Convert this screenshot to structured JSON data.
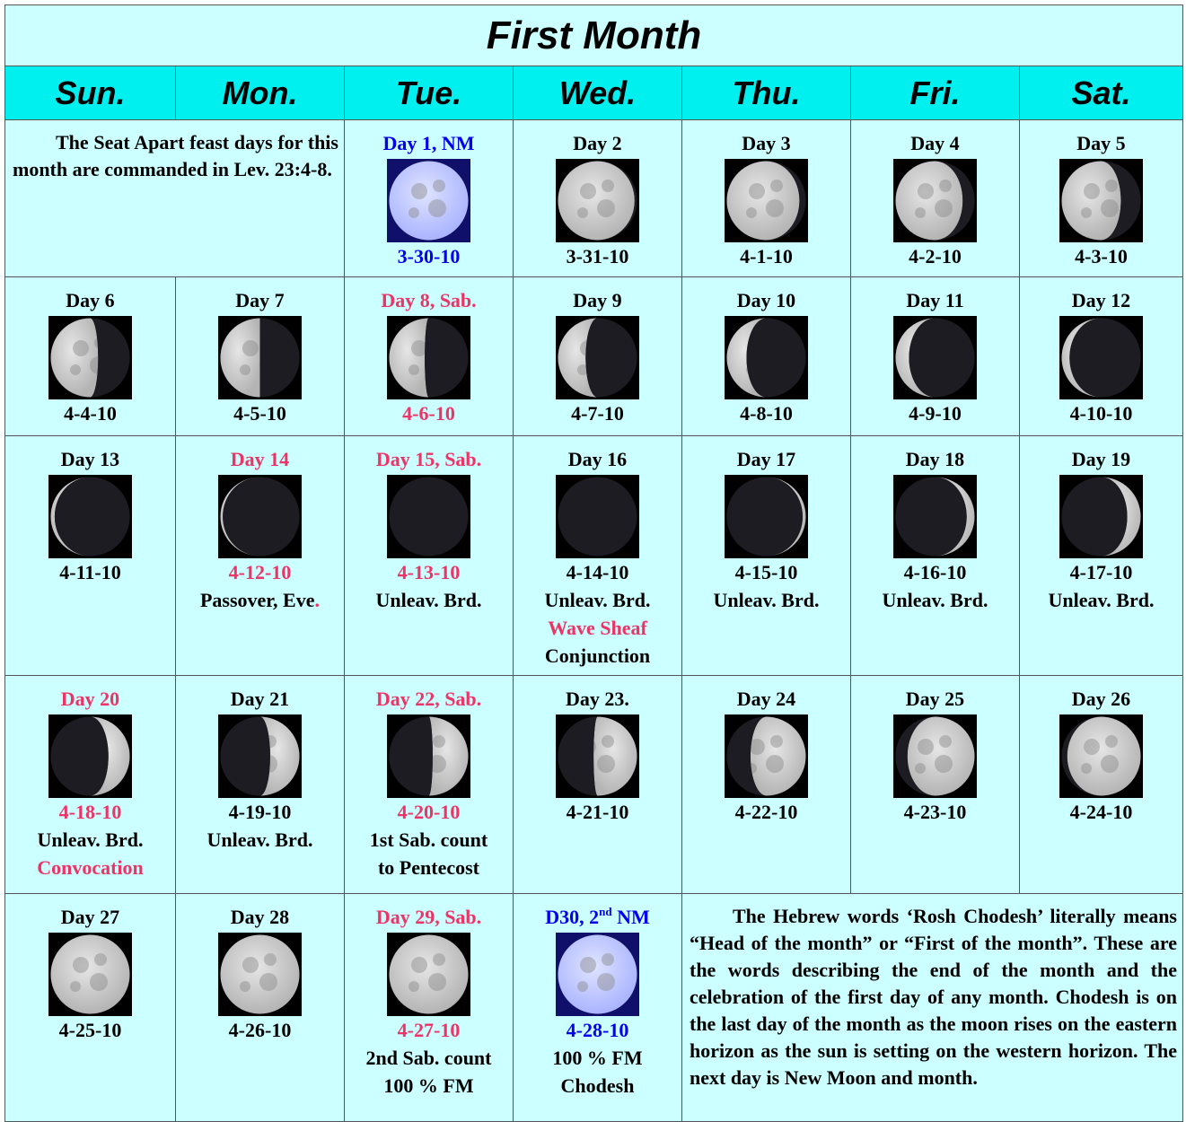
{
  "title": "First Month",
  "weekdays": [
    "Sun.",
    "Mon.",
    "Tue.",
    "Wed.",
    "Thu.",
    "Fri.",
    "Sat."
  ],
  "rows": [
    [
      {
        "text": "The Seat Apart feast days for this month are commanded in Lev. 23:4-8."
      },
      {
        "day": [
          {
            "text": "Day 1, NM",
            "color": "#0000ee"
          }
        ],
        "date": [
          {
            "text": "3-30-10",
            "color": "#0000ee"
          }
        ],
        "notes": []
      },
      {
        "day": [
          {
            "text": "Day 2"
          }
        ],
        "date": [
          {
            "text": "3-31-10"
          }
        ],
        "notes": []
      },
      {
        "day": [
          {
            "text": "Day 3"
          }
        ],
        "date": [
          {
            "text": "4-1-10"
          }
        ],
        "notes": []
      },
      {
        "day": [
          {
            "text": "Day 4"
          }
        ],
        "date": [
          {
            "text": "4-2-10"
          }
        ],
        "notes": []
      },
      {
        "day": [
          {
            "text": "Day 5"
          }
        ],
        "date": [
          {
            "text": "4-3-10"
          }
        ],
        "notes": []
      }
    ],
    [
      {
        "day": [
          {
            "text": "Day 6"
          }
        ],
        "date": [
          {
            "text": "4-4-10"
          }
        ],
        "notes": []
      },
      {
        "day": [
          {
            "text": "Day 7"
          }
        ],
        "date": [
          {
            "text": "4-5-10"
          }
        ],
        "notes": []
      },
      {
        "day": [
          {
            "text": "Day 8, Sab.",
            "color": "#ee3366"
          }
        ],
        "date": [
          {
            "text": "4-6-10",
            "color": "#ee3366"
          }
        ],
        "notes": []
      },
      {
        "day": [
          {
            "text": "Day 9"
          }
        ],
        "date": [
          {
            "text": "4-7-10"
          }
        ],
        "notes": []
      },
      {
        "day": [
          {
            "text": "Day 10"
          }
        ],
        "date": [
          {
            "text": "4-8-10"
          }
        ],
        "notes": []
      },
      {
        "day": [
          {
            "text": "Day 11"
          }
        ],
        "date": [
          {
            "text": "4-9-10"
          }
        ],
        "notes": []
      },
      {
        "day": [
          {
            "text": "Day 12"
          }
        ],
        "date": [
          {
            "text": "4-10-10"
          }
        ],
        "notes": []
      }
    ],
    [
      {
        "day": [
          {
            "text": "Day 13"
          }
        ],
        "date": [
          {
            "text": "4-11-10"
          }
        ],
        "notes": []
      },
      {
        "day": [
          {
            "text": "Day 14",
            "color": "#ee3366"
          }
        ],
        "date": [
          {
            "text": "4-12-10",
            "color": "#ee3366"
          }
        ],
        "notes": [
          [
            {
              "text": "Passover, Eve"
            },
            {
              "text": ".",
              "color": "#ee3366"
            }
          ]
        ]
      },
      {
        "day": [
          {
            "text": "Day 15, Sab.",
            "color": "#ee3366"
          }
        ],
        "date": [
          {
            "text": "4-13-10",
            "color": "#ee3366"
          }
        ],
        "notes": [
          [
            {
              "text": "Unleav. Brd."
            }
          ]
        ]
      },
      {
        "day": [
          {
            "text": "Day 16"
          }
        ],
        "date": [
          {
            "text": "4-14-10"
          }
        ],
        "notes": [
          [
            {
              "text": "Unleav. Brd."
            }
          ],
          [
            {
              "text": "Wave Sheaf",
              "color": "#ee3366"
            }
          ],
          [
            {
              "text": "Conjunction"
            }
          ]
        ]
      },
      {
        "day": [
          {
            "text": "Day 17"
          }
        ],
        "date": [
          {
            "text": "4-15-10"
          }
        ],
        "notes": [
          [
            {
              "text": "Unleav. Brd."
            }
          ]
        ]
      },
      {
        "day": [
          {
            "text": "Day 18"
          }
        ],
        "date": [
          {
            "text": "4-16-10"
          }
        ],
        "notes": [
          [
            {
              "text": "Unleav. Brd."
            }
          ]
        ]
      },
      {
        "day": [
          {
            "text": "Day 19"
          }
        ],
        "date": [
          {
            "text": "4-17-10"
          }
        ],
        "notes": [
          [
            {
              "text": "Unleav. Brd."
            }
          ]
        ]
      }
    ],
    [
      {
        "day": [
          {
            "text": "Day 20",
            "color": "#ee3366"
          }
        ],
        "date": [
          {
            "text": "4-18-10",
            "color": "#ee3366"
          }
        ],
        "notes": [
          [
            {
              "text": "Unleav. Brd."
            }
          ],
          [
            {
              "text": "Convocation",
              "color": "#ee3366"
            }
          ]
        ]
      },
      {
        "day": [
          {
            "text": "Day 21"
          }
        ],
        "date": [
          {
            "text": "4-19-10"
          }
        ],
        "notes": [
          [
            {
              "text": "Unleav. Brd."
            }
          ]
        ]
      },
      {
        "day": [
          {
            "text": "Day 22, Sab.",
            "color": "#ee3366"
          }
        ],
        "date": [
          {
            "text": "4-20-10",
            "color": "#ee3366"
          }
        ],
        "notes": [
          [
            {
              "text": "1st Sab. count"
            }
          ],
          [
            {
              "text": "to Pentecost"
            }
          ]
        ]
      },
      {
        "day": [
          {
            "text": "Day 23."
          }
        ],
        "date": [
          {
            "text": "4-21-10"
          }
        ],
        "notes": []
      },
      {
        "day": [
          {
            "text": "Day 24"
          }
        ],
        "date": [
          {
            "text": "4-22-10"
          }
        ],
        "notes": []
      },
      {
        "day": [
          {
            "text": "Day 25"
          }
        ],
        "date": [
          {
            "text": "4-23-10"
          }
        ],
        "notes": []
      },
      {
        "day": [
          {
            "text": "Day 26"
          }
        ],
        "date": [
          {
            "text": "4-24-10"
          }
        ],
        "notes": []
      }
    ],
    [
      {
        "day": [
          {
            "text": "Day 27"
          }
        ],
        "date": [
          {
            "text": "4-25-10"
          }
        ],
        "notes": []
      },
      {
        "day": [
          {
            "text": "Day 28"
          }
        ],
        "date": [
          {
            "text": "4-26-10"
          }
        ],
        "notes": []
      },
      {
        "day": [
          {
            "text": "Day 29, Sab.",
            "color": "#ee3366"
          }
        ],
        "date": [
          {
            "text": "4-27-10",
            "color": "#ee3366"
          }
        ],
        "notes": [
          [
            {
              "text": "2nd Sab. count"
            }
          ],
          [
            {
              "text": "100 % FM"
            }
          ]
        ]
      },
      {
        "day": [
          {
            "text": "D30, 2",
            "color": "#0000ee"
          },
          {
            "text": "nd",
            "color": "#0000ee",
            "sup": true
          },
          {
            "text": " NM",
            "color": "#0000ee"
          }
        ],
        "date": [
          {
            "text": "4-28-10",
            "color": "#0000ee"
          }
        ],
        "notes": [
          [
            {
              "text": "100 % FM"
            }
          ],
          [
            {
              "text": "Chodesh"
            }
          ]
        ]
      },
      {
        "text": "The Hebrew words ‘Rosh Chodesh’ literally means “Head of the month” or “First of the month”.  These are the words describing the end of the month and the celebration of the first day of any month.  Chodesh is on the last day of the month as the moon rises  on the eastern horizon as the sun is setting on the western horizon.  The next day is New Moon and month."
      }
    ]
  ]
}
